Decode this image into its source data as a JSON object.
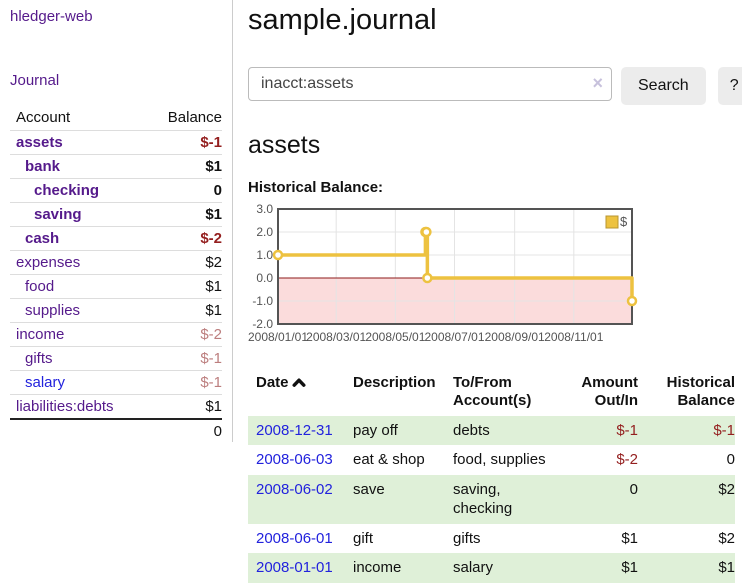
{
  "app": {
    "title": "hledger-web",
    "nav_journal": "Journal"
  },
  "colors": {
    "link_purple": "#551a8b",
    "link_blue": "#2222dd",
    "negative_strong": "#941f1f",
    "negative_faded": "#bc7e7e",
    "row_stripe_green": "#dff0d8",
    "chart_line_yellow": "#edc240",
    "chart_negative_fill": "#fbdcdc",
    "chart_zero_line": "#8d1a1a"
  },
  "sidebar": {
    "table": {
      "col_account": "Account",
      "col_balance": "Balance"
    },
    "accounts": [
      {
        "name": "assets",
        "balance": "$-1",
        "depth": 0,
        "bold": true,
        "balance_style": "negative-strong",
        "name_color": "purple"
      },
      {
        "name": "bank",
        "balance": "$1",
        "depth": 1,
        "bold": true,
        "balance_style": "normal",
        "name_color": "purple"
      },
      {
        "name": "checking",
        "balance": "0",
        "depth": 2,
        "bold": true,
        "balance_style": "normal",
        "name_color": "purple"
      },
      {
        "name": "saving",
        "balance": "$1",
        "depth": 2,
        "bold": true,
        "balance_style": "normal",
        "name_color": "purple"
      },
      {
        "name": "cash",
        "balance": "$-2",
        "depth": 1,
        "bold": true,
        "balance_style": "negative-strong",
        "name_color": "purple"
      },
      {
        "name": "expenses",
        "balance": "$2",
        "depth": 0,
        "bold": false,
        "balance_style": "normal",
        "name_color": "purple"
      },
      {
        "name": "food",
        "balance": "$1",
        "depth": 1,
        "bold": false,
        "balance_style": "normal",
        "name_color": "purple"
      },
      {
        "name": "supplies",
        "balance": "$1",
        "depth": 1,
        "bold": false,
        "balance_style": "normal",
        "name_color": "purple"
      },
      {
        "name": "income",
        "balance": "$-2",
        "depth": 0,
        "bold": false,
        "balance_style": "negative-faded",
        "name_color": "purple"
      },
      {
        "name": "gifts",
        "balance": "$-1",
        "depth": 1,
        "bold": false,
        "balance_style": "negative-faded",
        "name_color": "purple"
      },
      {
        "name": "salary",
        "balance": "$-1",
        "depth": 1,
        "bold": false,
        "balance_style": "negative-faded",
        "name_color": "blue"
      },
      {
        "name": "liabilities:debts",
        "balance": "$1",
        "depth": 0,
        "bold": false,
        "balance_style": "normal",
        "name_color": "purple"
      }
    ],
    "total": "0"
  },
  "header": {
    "title": "sample.journal"
  },
  "search": {
    "value": "inacct:assets",
    "clear_icon": "×",
    "button_label": "Search",
    "help_label": "?"
  },
  "account_page": {
    "heading": "assets",
    "section_label": "Historical Balance:"
  },
  "chart_data": {
    "type": "line",
    "title": "Historical Balance:",
    "step": true,
    "xlim": [
      "2008-01-01",
      "2008-12-31"
    ],
    "ylim": [
      -2.0,
      3.0
    ],
    "yticks": [
      3.0,
      2.0,
      1.0,
      0.0,
      -1.0,
      -2.0
    ],
    "xticks": [
      "2008/01/01",
      "2008/03/01",
      "2008/05/01",
      "2008/07/01",
      "2008/09/01",
      "2008/11/01"
    ],
    "grid": true,
    "legend_position": "top-right",
    "series": [
      {
        "name": "$",
        "color": "#edc240",
        "points": [
          {
            "date": "2008-01-01",
            "value": 1
          },
          {
            "date": "2008-06-01",
            "value": 2
          },
          {
            "date": "2008-06-02",
            "value": 2
          },
          {
            "date": "2008-06-03",
            "value": 0
          },
          {
            "date": "2008-12-31",
            "value": -1
          }
        ]
      }
    ],
    "negative_region_fill": "#fbdcdc",
    "zero_line_color": "#8d1a1a"
  },
  "register": {
    "headers": [
      {
        "label": "Date",
        "sorted": "ascending"
      },
      {
        "label": "Description"
      },
      {
        "label": "To/From Account(s)"
      },
      {
        "label": "Amount Out/In"
      },
      {
        "label": "Historical Balance"
      }
    ],
    "rows": [
      {
        "date": "2008-12-31",
        "description": "pay off",
        "accounts": "debts",
        "amount": "$-1",
        "amount_negative": true,
        "balance": "$-1",
        "balance_negative": true
      },
      {
        "date": "2008-06-03",
        "description": "eat & shop",
        "accounts": "food, supplies",
        "amount": "$-2",
        "amount_negative": true,
        "balance": "0",
        "balance_negative": false
      },
      {
        "date": "2008-06-02",
        "description": "save",
        "accounts": "saving, checking",
        "amount": "0",
        "amount_negative": false,
        "balance": "$2",
        "balance_negative": false
      },
      {
        "date": "2008-06-01",
        "description": "gift",
        "accounts": "gifts",
        "amount": "$1",
        "amount_negative": false,
        "balance": "$2",
        "balance_negative": false
      },
      {
        "date": "2008-01-01",
        "description": "income",
        "accounts": "salary",
        "amount": "$1",
        "amount_negative": false,
        "balance": "$1",
        "balance_negative": false
      }
    ]
  }
}
